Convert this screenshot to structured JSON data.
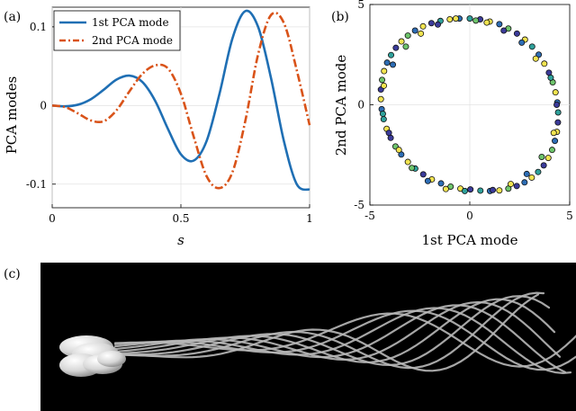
{
  "panels": {
    "a": {
      "label": "(a)"
    },
    "b": {
      "label": "(b)"
    },
    "c": {
      "label": "(c)"
    }
  },
  "chart_data": [
    {
      "id": "a",
      "type": "line",
      "title": "",
      "xlabel": "s",
      "ylabel": "PCA modes",
      "xlim": [
        0,
        1
      ],
      "ylim": [
        -0.13,
        0.125
      ],
      "xticks": [
        0,
        0.5,
        1
      ],
      "xtick_labels": [
        "0",
        "0.5",
        "1"
      ],
      "yticks": [
        -0.1,
        0,
        0.1
      ],
      "ytick_labels": [
        "-0.1",
        "0",
        "0.1"
      ],
      "grid": true,
      "legend_position": "top-left",
      "series": [
        {
          "name": "1st PCA mode",
          "color": "#1f6fb4",
          "style": "solid",
          "x": [
            0,
            0.05,
            0.1,
            0.15,
            0.2,
            0.25,
            0.3,
            0.35,
            0.4,
            0.45,
            0.5,
            0.55,
            0.6,
            0.65,
            0.7,
            0.75,
            0.8,
            0.85,
            0.9,
            0.95,
            1.0
          ],
          "values": [
            0,
            -0.001,
            0.001,
            0.008,
            0.02,
            0.033,
            0.038,
            0.03,
            0.006,
            -0.03,
            -0.062,
            -0.07,
            -0.045,
            0.015,
            0.085,
            0.12,
            0.1,
            0.035,
            -0.045,
            -0.1,
            -0.107
          ]
        },
        {
          "name": "2nd PCA mode",
          "color": "#d95319",
          "style": "dashdot",
          "x": [
            0,
            0.05,
            0.1,
            0.15,
            0.2,
            0.25,
            0.3,
            0.35,
            0.4,
            0.45,
            0.5,
            0.55,
            0.6,
            0.65,
            0.7,
            0.75,
            0.8,
            0.85,
            0.9,
            0.95,
            1.0
          ],
          "values": [
            0,
            -0.002,
            -0.01,
            -0.019,
            -0.02,
            -0.006,
            0.018,
            0.04,
            0.051,
            0.047,
            0.015,
            -0.04,
            -0.09,
            -0.105,
            -0.085,
            -0.02,
            0.065,
            0.115,
            0.105,
            0.045,
            -0.025
          ]
        }
      ]
    },
    {
      "id": "b",
      "type": "scatter",
      "title": "",
      "xlabel": "1st PCA mode",
      "ylabel": "2nd PCA mode",
      "xlim": [
        -5,
        5
      ],
      "ylim": [
        -5,
        5
      ],
      "xticks": [
        -5,
        0,
        5
      ],
      "xtick_labels": [
        "-5",
        "0",
        "5"
      ],
      "yticks": [
        -5,
        0,
        5
      ],
      "ytick_labels": [
        "-5",
        "0",
        "5"
      ],
      "grid": true,
      "point_colors": [
        "#3b3b9a",
        "#2d6db5",
        "#2fa19b",
        "#6ec46c",
        "#f2e450"
      ],
      "points": {
        "x": [
          0.0,
          0.52,
          1.0,
          1.48,
          1.93,
          2.36,
          2.76,
          3.12,
          3.45,
          3.73,
          3.96,
          4.15,
          4.29,
          4.38,
          4.42,
          4.41,
          4.36,
          4.26,
          4.12,
          3.93,
          3.7,
          3.42,
          3.1,
          2.74,
          2.35,
          1.93,
          1.48,
          1.01,
          0.53,
          0.03,
          -0.47,
          -0.96,
          -1.44,
          -1.9,
          -2.33,
          -2.73,
          -3.1,
          -3.43,
          -3.72,
          -3.96,
          -4.16,
          -4.31,
          -4.41,
          -4.45,
          -4.45,
          -4.39,
          -4.29,
          -4.14,
          -3.94,
          -3.7,
          -3.42,
          -3.1,
          -2.74,
          -2.34,
          -1.92,
          -1.47,
          -1.0,
          -0.52,
          0.3,
          0.85,
          1.7,
          2.6,
          3.3,
          4.05,
          4.35,
          4.2,
          3.6,
          2.85,
          2.05,
          1.15,
          -0.25,
          -1.2,
          -2.1,
          -2.9,
          -3.55,
          -4.05,
          -4.35,
          -4.3,
          -3.85,
          -3.2,
          -2.45,
          -1.6,
          -0.7
        ],
        "y": [
          4.3,
          4.26,
          4.15,
          4.02,
          3.8,
          3.55,
          3.25,
          2.9,
          2.5,
          2.05,
          1.6,
          1.12,
          0.62,
          0.12,
          -0.38,
          -0.88,
          -1.35,
          -1.8,
          -2.25,
          -2.65,
          -3.02,
          -3.35,
          -3.63,
          -3.87,
          -4.05,
          -4.18,
          -4.27,
          -4.3,
          -4.28,
          -4.22,
          -4.18,
          -4.08,
          -3.92,
          -3.72,
          -3.47,
          -3.18,
          -2.85,
          -2.48,
          -2.08,
          -1.65,
          -1.2,
          -0.72,
          -0.22,
          0.28,
          0.76,
          1.24,
          1.68,
          2.1,
          2.48,
          2.84,
          3.16,
          3.45,
          3.7,
          3.91,
          4.07,
          4.18,
          4.26,
          4.3,
          4.2,
          4.1,
          3.7,
          3.1,
          2.3,
          1.35,
          0.0,
          -1.4,
          -2.6,
          -3.45,
          -3.95,
          -4.25,
          -4.3,
          -4.2,
          -3.8,
          -3.15,
          -2.25,
          -1.4,
          -0.45,
          0.95,
          2.0,
          2.9,
          3.55,
          4.0,
          4.3
        ],
        "color_index": [
          2,
          0,
          4,
          1,
          3,
          0,
          4,
          2,
          1,
          4,
          0,
          3,
          4,
          1,
          2,
          0,
          4,
          1,
          3,
          4,
          0,
          2,
          4,
          1,
          0,
          3,
          4,
          1,
          2,
          0,
          4,
          3,
          1,
          4,
          0,
          2,
          4,
          1,
          3,
          0,
          4,
          2,
          1,
          4,
          0,
          3,
          4,
          1,
          2,
          0,
          4,
          3,
          1,
          4,
          0,
          2,
          4,
          1,
          3,
          4,
          0,
          1,
          4,
          2,
          0,
          4,
          3,
          1,
          4,
          0,
          2,
          4,
          1,
          3,
          4,
          0,
          2,
          4,
          1,
          3,
          4,
          0,
          4
        ]
      }
    }
  ],
  "panel_c": {
    "background": "#000000",
    "filament_color": "#b8b8b8",
    "head_color": "#e6e6e6"
  }
}
